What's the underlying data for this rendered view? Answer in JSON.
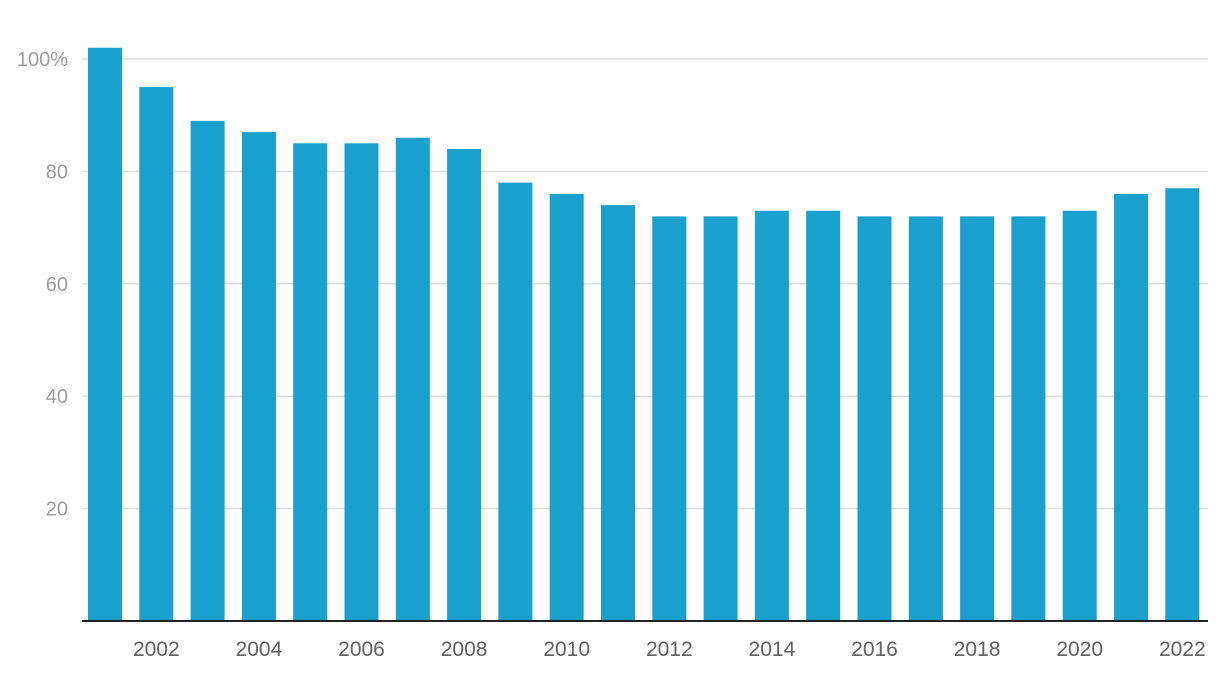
{
  "chart_data": {
    "type": "bar",
    "title": "",
    "xlabel": "",
    "ylabel": "",
    "y_unit_suffix": "%",
    "ylim": [
      0,
      100
    ],
    "yticks": [
      20,
      40,
      60,
      80,
      100
    ],
    "grid": true,
    "legend": "none",
    "bar_color": "#1aa0cc",
    "categories": [
      "2001",
      "2002",
      "2003",
      "2004",
      "2005",
      "2006",
      "2007",
      "2008",
      "2009",
      "2010",
      "2011",
      "2012",
      "2013",
      "2014",
      "2015",
      "2016",
      "2017",
      "2018",
      "2019",
      "2020",
      "2021",
      "2022"
    ],
    "xtick_labels": [
      "2002",
      "2004",
      "2006",
      "2008",
      "2010",
      "2012",
      "2014",
      "2016",
      "2018",
      "2020",
      "2022"
    ],
    "values": [
      102,
      95,
      89,
      87,
      85,
      85,
      86,
      84,
      78,
      76,
      74,
      72,
      72,
      73,
      73,
      72,
      72,
      72,
      72,
      73,
      76,
      77
    ]
  }
}
